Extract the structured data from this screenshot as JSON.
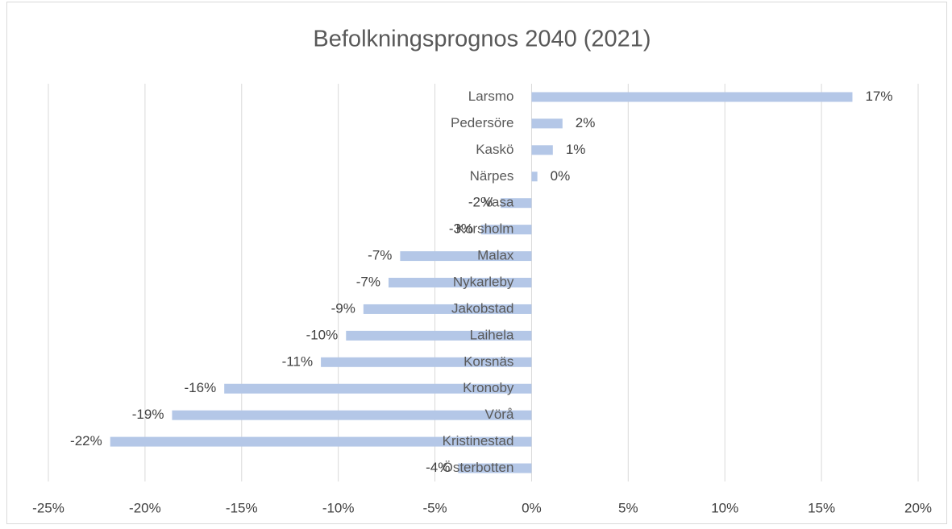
{
  "chart_data": {
    "type": "hbar",
    "title": "Befolkningsprognos 2040 (2021)",
    "categories": [
      "Larsmo",
      "Pedersöre",
      "Kaskö",
      "Närpes",
      "Vasa",
      "Korsholm",
      "Malax",
      "Nykarleby",
      "Jakobstad",
      "Laihela",
      "Korsnäs",
      "Kronoby",
      "Vörå",
      "Kristinestad",
      "Österbotten"
    ],
    "values": [
      16.6,
      1.6,
      1.1,
      0.3,
      -1.6,
      -2.6,
      -6.8,
      -7.4,
      -8.7,
      -9.6,
      -10.9,
      -15.9,
      -18.6,
      -21.8,
      -3.8
    ],
    "value_labels": [
      "17%",
      "2%",
      "1%",
      "0%",
      "-2%",
      "-3%",
      "-7%",
      "-7%",
      "-9%",
      "-10%",
      "-11%",
      "-16%",
      "-19%",
      "-22%",
      "-4%"
    ],
    "color": "#b4c7e7",
    "xlim": [
      -25,
      20
    ],
    "xticks": [
      {
        "value": -25,
        "label": "-25%"
      },
      {
        "value": -20,
        "label": "-20%"
      },
      {
        "value": -15,
        "label": "-15%"
      },
      {
        "value": -10,
        "label": "-10%"
      },
      {
        "value": -5,
        "label": "-5%"
      },
      {
        "value": 0,
        "label": "0%"
      },
      {
        "value": 5,
        "label": "5%"
      },
      {
        "value": 10,
        "label": "10%"
      },
      {
        "value": 15,
        "label": "15%"
      },
      {
        "value": 20,
        "label": "20%"
      }
    ],
    "grid": true
  }
}
